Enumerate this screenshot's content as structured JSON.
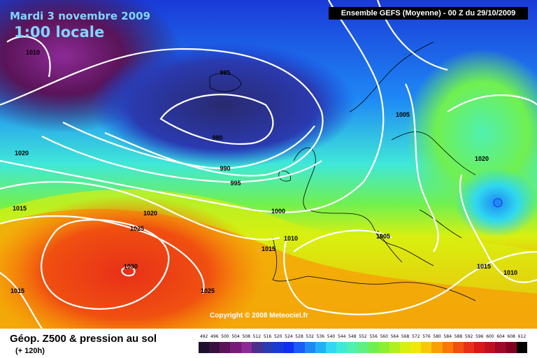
{
  "header": {
    "date": "Mardi 3 novembre 2009",
    "time": "1:00 locale",
    "model_run": "Ensemble GEFS (Moyenne)  - 00 Z du 29/10/2009"
  },
  "map": {
    "copyright": "Copyright © 2008 Meteociel.fr",
    "isobar_labels": [
      "1010",
      "985",
      "980",
      "990",
      "995",
      "1020",
      "1015",
      "1020",
      "1025",
      "1030",
      "1025",
      "1015",
      "1000",
      "1010",
      "1015",
      "1005",
      "1005",
      "1020",
      "1015",
      "1010"
    ]
  },
  "footer": {
    "caption": "Géop. Z500 & pression au sol",
    "forecast_hour": "(+ 120h)"
  },
  "legend": {
    "units_values": [
      "492",
      "496",
      "500",
      "504",
      "508",
      "512",
      "516",
      "520",
      "524",
      "528",
      "532",
      "536",
      "540",
      "544",
      "548",
      "552",
      "556",
      "560",
      "564",
      "568",
      "572",
      "576",
      "580",
      "584",
      "588",
      "592",
      "596",
      "600",
      "604",
      "608",
      "612"
    ],
    "colors": [
      "#1e0f2e",
      "#3a1040",
      "#5a1458",
      "#7a1a78",
      "#8c2a96",
      "#4a2f8c",
      "#2a3ab0",
      "#1a3ad8",
      "#1030f0",
      "#1a5cf5",
      "#1e88f5",
      "#22b0f5",
      "#30d8f0",
      "#40e8d8",
      "#50f0b0",
      "#60f080",
      "#70f050",
      "#8cf030",
      "#b0f020",
      "#d8f010",
      "#f0e808",
      "#f8c808",
      "#f8a008",
      "#f87808",
      "#f05010",
      "#e83018",
      "#d81818",
      "#c01020",
      "#a00828",
      "#800020",
      "#000000"
    ]
  }
}
